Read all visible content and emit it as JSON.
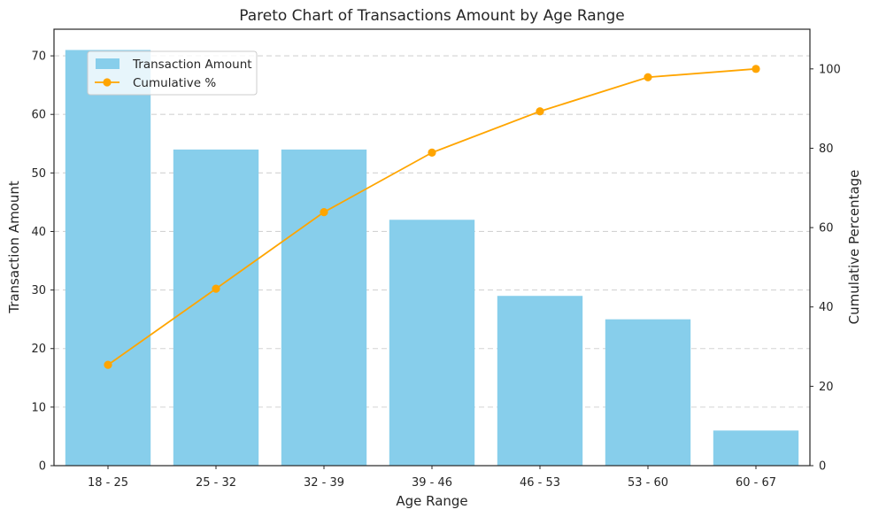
{
  "chart_data": {
    "type": "bar",
    "title": "Pareto Chart of Transactions Amount by Age Range",
    "xlabel": "Age Range",
    "ylabel": "Transaction Amount",
    "y2label": "Cumulative Percentage",
    "categories": [
      "18 - 25",
      "25 - 32",
      "32 - 39",
      "39 - 46",
      "46 - 53",
      "53 - 60",
      "60 - 67"
    ],
    "series": [
      {
        "name": "Transaction Amount",
        "type": "bar",
        "axis": "left",
        "color": "#87ceeb",
        "values": [
          71,
          54,
          54,
          42,
          29,
          25,
          6
        ]
      },
      {
        "name": "Cumulative %",
        "type": "line",
        "axis": "right",
        "color": "#ffa500",
        "values": [
          25.4,
          44.6,
          63.9,
          78.9,
          89.3,
          97.9,
          100.0
        ]
      }
    ],
    "ylim": [
      0,
      74.55
    ],
    "y2lim": [
      0,
      110
    ],
    "yticks": [
      0,
      10,
      20,
      30,
      40,
      50,
      60,
      70
    ],
    "y2ticks": [
      0,
      20,
      40,
      60,
      80,
      100
    ],
    "grid": "horizontal dashed",
    "legend_position": "upper-left"
  }
}
